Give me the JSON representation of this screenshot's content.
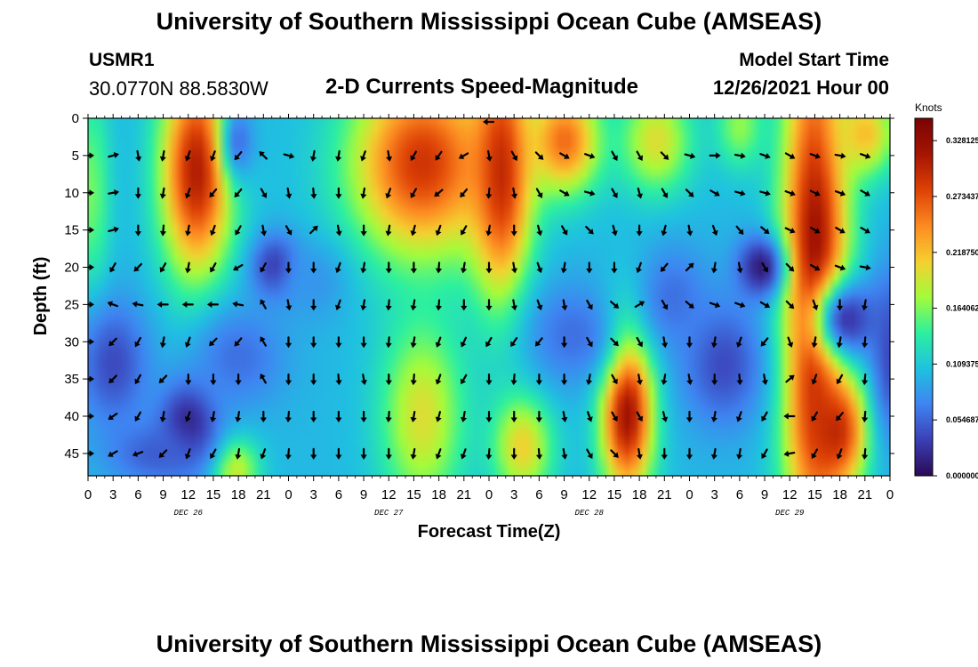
{
  "header": {
    "title": "University of Southern Mississippi Ocean Cube (AMSEAS)",
    "station_id": "USMR1",
    "coordinates": "30.0770N  88.5830W",
    "plot_title": "2-D Currents Speed-Magnitude",
    "model_start_label": "Model Start Time",
    "model_start_value": "12/26/2021 Hour 00"
  },
  "footer": {
    "title": "University of Southern Mississippi Ocean Cube (AMSEAS)"
  },
  "colors": {
    "scale": [
      "#2a0a55",
      "#3b3fb5",
      "#3f84f2",
      "#1fc2e0",
      "#2cf0a0",
      "#a4fc3b",
      "#f5d030",
      "#fd8a22",
      "#de4206",
      "#a51502",
      "#7a0403"
    ],
    "arrow": "#000000"
  },
  "chart_data": {
    "type": "heatmap",
    "title": "2-D Currents Speed-Magnitude",
    "xlabel": "Forecast Time(Z)",
    "ylabel": "Depth (ft)",
    "x_ticks": [
      "0",
      "3",
      "6",
      "9",
      "12",
      "15",
      "18",
      "21",
      "0",
      "3",
      "6",
      "9",
      "12",
      "15",
      "18",
      "21",
      "0",
      "3",
      "6",
      "9",
      "12",
      "15",
      "18",
      "21",
      "0",
      "3",
      "6",
      "9",
      "12",
      "15",
      "18",
      "21",
      "0"
    ],
    "x_range_hours": [
      0,
      96
    ],
    "date_labels": [
      {
        "label": "DEC 26",
        "hour": 12
      },
      {
        "label": "DEC 27",
        "hour": 36
      },
      {
        "label": "DEC 28",
        "hour": 60
      },
      {
        "label": "DEC 29",
        "hour": 84
      }
    ],
    "y_ticks": [
      0,
      5,
      10,
      15,
      20,
      25,
      30,
      35,
      40,
      45
    ],
    "y_range_ft": [
      0,
      48
    ],
    "colorbar": {
      "unit": "Knots",
      "min": 0,
      "max": 0.35,
      "tick_labels": [
        "0.000000",
        "0.054687",
        "0.109375",
        "0.164062",
        "0.218750",
        "0.273437",
        "0.328125"
      ]
    },
    "speed_features": [
      {
        "hour": 13,
        "depth": 7,
        "sx": 3,
        "sy": 10,
        "knots": 0.31
      },
      {
        "hour": 40,
        "depth": 6,
        "sx": 6,
        "sy": 9,
        "knots": 0.29
      },
      {
        "hour": 49.5,
        "depth": 7,
        "sx": 2.5,
        "sy": 12,
        "knots": 0.3
      },
      {
        "hour": 57,
        "depth": 3,
        "sx": 3,
        "sy": 5,
        "knots": 0.26
      },
      {
        "hour": 68,
        "depth": 3,
        "sx": 3,
        "sy": 5,
        "knots": 0.2
      },
      {
        "hour": 64.5,
        "depth": 39,
        "sx": 2.2,
        "sy": 8,
        "knots": 0.33
      },
      {
        "hour": 87,
        "depth": 22,
        "sx": 2.8,
        "sy": 26,
        "knots": 0.33
      },
      {
        "hour": 93,
        "depth": 2,
        "sx": 2.5,
        "sy": 4,
        "knots": 0.22
      },
      {
        "hour": 89.5,
        "depth": 42,
        "sx": 2.5,
        "sy": 5,
        "knots": 0.3
      },
      {
        "hour": 40,
        "depth": 40,
        "sx": 3.5,
        "sy": 9,
        "knots": 0.2
      },
      {
        "hour": 17.5,
        "depth": 47,
        "sx": 2,
        "sy": 3,
        "knots": 0.2
      },
      {
        "hour": 52,
        "depth": 44,
        "sx": 2.5,
        "sy": 5,
        "knots": 0.21
      },
      {
        "hour": 0.5,
        "depth": 10,
        "sx": 1.5,
        "sy": 10,
        "knots": 0.16
      },
      {
        "hour": 78,
        "depth": 1,
        "sx": 2,
        "sy": 4,
        "knots": 0.17
      },
      {
        "hour": 22.5,
        "depth": 20,
        "sx": 2,
        "sy": 3,
        "knots": 0.02
      },
      {
        "hour": 80.5,
        "depth": 20,
        "sx": 2,
        "sy": 3,
        "knots": 0.01
      },
      {
        "hour": 12,
        "depth": 41,
        "sx": 2.5,
        "sy": 4,
        "knots": 0.01
      },
      {
        "hour": 3,
        "depth": 33,
        "sx": 3,
        "sy": 6,
        "knots": 0.04
      },
      {
        "hour": 91,
        "depth": 27,
        "sx": 3,
        "sy": 4,
        "knots": 0.03
      },
      {
        "hour": 18,
        "depth": 32,
        "sx": 4,
        "sy": 5,
        "knots": 0.06
      },
      {
        "hour": 8,
        "depth": 45,
        "sx": 4,
        "sy": 3,
        "knots": 0.05
      },
      {
        "hour": 58,
        "depth": 29,
        "sx": 4,
        "sy": 5,
        "knots": 0.06
      },
      {
        "hour": 76,
        "depth": 33,
        "sx": 3.5,
        "sy": 6,
        "knots": 0.04
      },
      {
        "hour": 70,
        "depth": 24,
        "sx": 3,
        "sy": 5,
        "knots": 0.06
      },
      {
        "hour": 96,
        "depth": 32,
        "sx": 1.5,
        "sy": 8,
        "knots": 0.04
      },
      {
        "hour": 27,
        "depth": 22,
        "sx": 3,
        "sy": 4,
        "knots": 0.08
      },
      {
        "hour": 18,
        "depth": 3,
        "sx": 1.5,
        "sy": 4,
        "knots": 0.06
      }
    ],
    "background_knots": 0.1,
    "arrow_directions_deg": [
      [
        null,
        null,
        null,
        null,
        null,
        null,
        null,
        null,
        null,
        null,
        null,
        null,
        null,
        null,
        null,
        null,
        180,
        null,
        null,
        null,
        null,
        null,
        null,
        null,
        null,
        null,
        null,
        null,
        null,
        null,
        null,
        null
      ],
      [
        0,
        15,
        -80,
        -100,
        -110,
        -110,
        -130,
        135,
        345,
        -100,
        -100,
        -110,
        -80,
        -120,
        -125,
        -150,
        -80,
        -60,
        -45,
        -30,
        -20,
        -60,
        -60,
        -45,
        -15,
        0,
        -10,
        -20,
        -30,
        -20,
        -10,
        -20
      ],
      [
        0,
        10,
        -90,
        -100,
        -110,
        -130,
        -130,
        -60,
        -80,
        -85,
        -90,
        -100,
        -110,
        -120,
        -140,
        -130,
        -95,
        -80,
        -60,
        -30,
        -15,
        -60,
        -75,
        -60,
        -45,
        -30,
        -15,
        -15,
        -20,
        -25,
        -20,
        -30
      ],
      [
        0,
        15,
        -90,
        -95,
        -100,
        -110,
        -120,
        -80,
        -60,
        45,
        -80,
        -90,
        -100,
        -105,
        -110,
        -120,
        -100,
        -90,
        -75,
        -60,
        -45,
        -75,
        -90,
        -105,
        -80,
        -70,
        -50,
        -40,
        -25,
        -30,
        -30,
        -30
      ],
      [
        0,
        -120,
        -135,
        -120,
        -100,
        -120,
        -150,
        -120,
        -90,
        -90,
        -110,
        -100,
        -90,
        -90,
        -95,
        -100,
        -90,
        -80,
        -70,
        -100,
        -90,
        -90,
        -110,
        -130,
        45,
        -100,
        -80,
        -60,
        -45,
        -30,
        -20,
        -10
      ],
      [
        0,
        160,
        170,
        180,
        180,
        180,
        170,
        120,
        -80,
        -90,
        -110,
        -100,
        -95,
        -100,
        -95,
        -90,
        -90,
        -80,
        -70,
        -80,
        -60,
        -40,
        30,
        -60,
        -40,
        -20,
        -20,
        -30,
        -45,
        -70,
        -90,
        -100
      ],
      [
        0,
        -135,
        -120,
        -100,
        -110,
        -135,
        -130,
        120,
        -90,
        -90,
        -90,
        -90,
        -95,
        -100,
        -110,
        -115,
        -120,
        -125,
        -130,
        -90,
        -60,
        -45,
        -60,
        -80,
        -90,
        -100,
        -110,
        -130,
        -70,
        -100,
        -100,
        -95
      ],
      [
        0,
        -135,
        -120,
        -135,
        -90,
        -90,
        -90,
        120,
        -90,
        -90,
        -85,
        -80,
        -90,
        -95,
        -110,
        -120,
        -90,
        -95,
        -90,
        -90,
        -100,
        -60,
        -80,
        -100,
        -80,
        -90,
        -85,
        -80,
        40,
        -110,
        -120,
        -95
      ],
      [
        0,
        -145,
        -120,
        -100,
        -110,
        -100,
        -100,
        -90,
        -95,
        -90,
        -90,
        -90,
        -95,
        -100,
        -105,
        -100,
        -90,
        -90,
        -90,
        -80,
        -70,
        -60,
        -60,
        -75,
        -90,
        -100,
        -110,
        -120,
        180,
        -120,
        -130,
        -95
      ],
      [
        0,
        -150,
        -160,
        -135,
        -110,
        -120,
        -100,
        -110,
        -95,
        -90,
        -90,
        -90,
        -90,
        -100,
        -110,
        -110,
        -95,
        -90,
        -85,
        -80,
        -60,
        -45,
        -80,
        -90,
        -90,
        -100,
        -100,
        -120,
        190,
        -120,
        -110,
        -95
      ]
    ]
  }
}
